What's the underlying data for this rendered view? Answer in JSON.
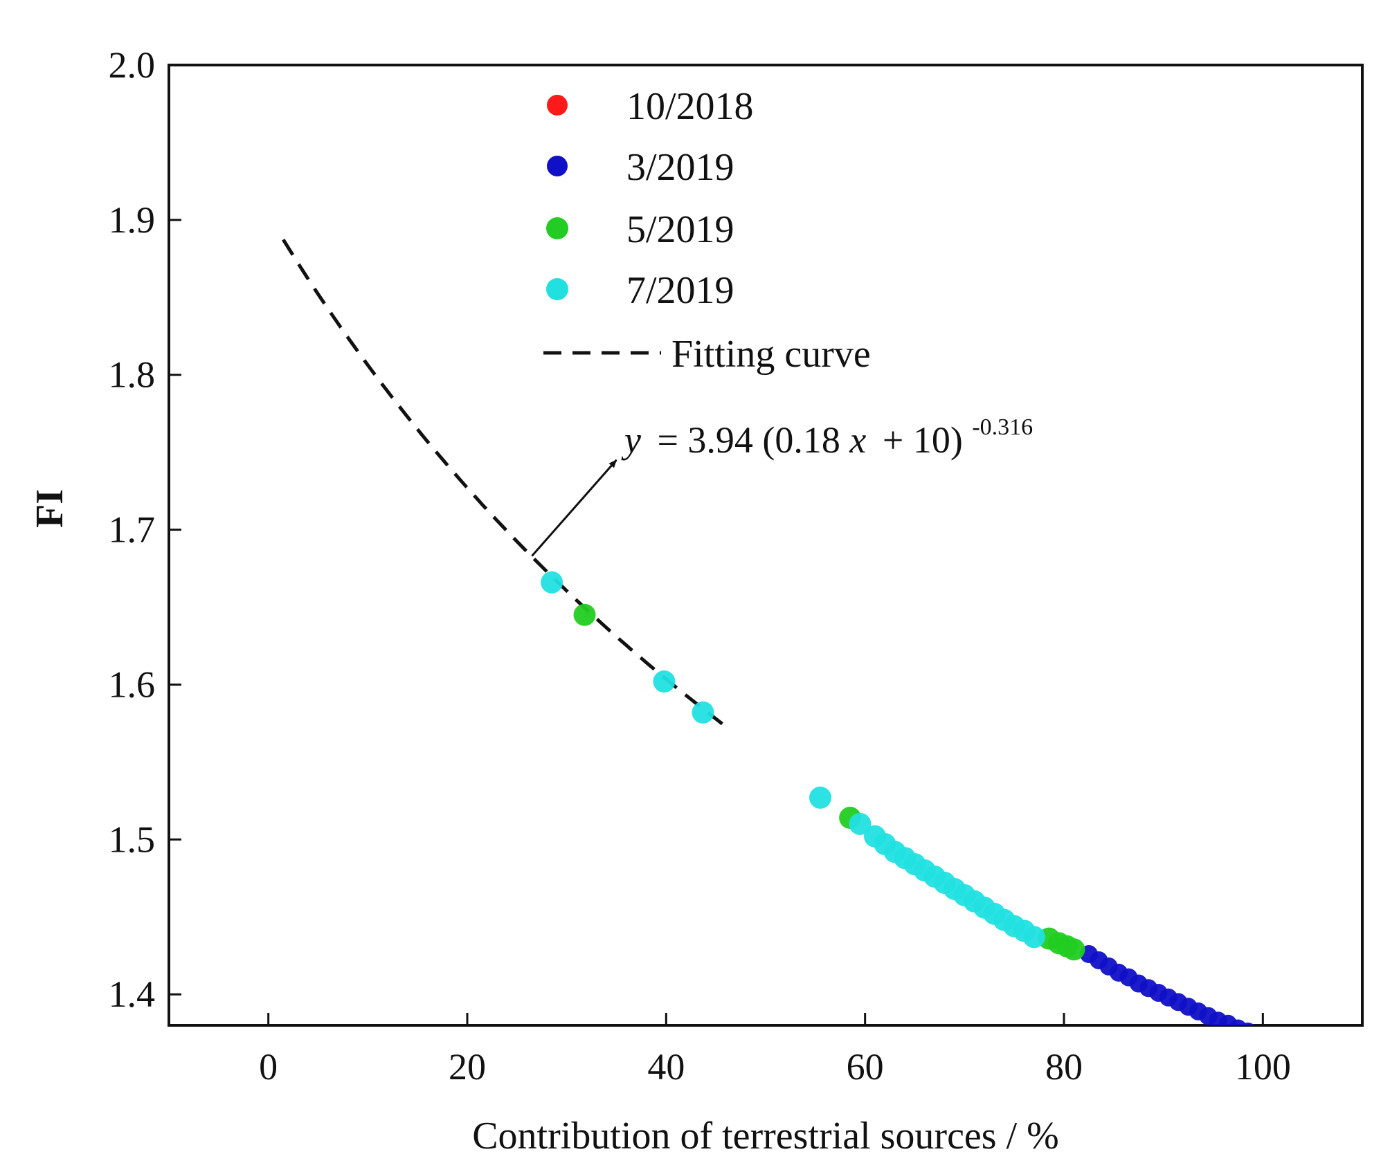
{
  "chart_data": {
    "type": "scatter",
    "title": "",
    "xlabel": "Contribution of terrestrial sources / %",
    "ylabel": "FI",
    "xlim": [
      -10,
      110
    ],
    "ylim": [
      1.38,
      2.0
    ],
    "xticks": [
      0,
      20,
      40,
      60,
      80,
      100
    ],
    "yticks": [
      1.4,
      1.5,
      1.6,
      1.7,
      1.8,
      1.9,
      2.0
    ],
    "xtick_labels": [
      "0",
      "20",
      "40",
      "60",
      "80",
      "100"
    ],
    "ytick_labels": [
      "1.4",
      "1.5",
      "1.6",
      "1.7",
      "1.8",
      "1.9",
      "2.0"
    ],
    "legend_position": "top-center",
    "series": [
      {
        "name": "10/2018",
        "color": "#ff1a1a",
        "x": [],
        "y": []
      },
      {
        "name": "3/2019",
        "color": "#1010c8",
        "x": [
          82.5,
          83.5,
          84.5,
          85.5,
          86.5,
          87.5,
          88.5,
          89.5,
          90.5,
          91.5,
          92.5,
          93.5,
          94.5,
          95.5,
          96.5,
          97.5,
          98.5
        ],
        "y": [
          1.426,
          1.422,
          1.418,
          1.414,
          1.411,
          1.407,
          1.404,
          1.401,
          1.398,
          1.395,
          1.392,
          1.389,
          1.386,
          1.383,
          1.381,
          1.378,
          1.376
        ]
      },
      {
        "name": "5/2019",
        "color": "#22cc22",
        "x": [
          31.8,
          58.5,
          78.5,
          79.5,
          80.3,
          81.0
        ],
        "y": [
          1.645,
          1.514,
          1.436,
          1.433,
          1.431,
          1.429
        ]
      },
      {
        "name": "7/2019",
        "color": "#22e0e0",
        "x": [
          28.5,
          39.8,
          43.7,
          55.5,
          59.5,
          61.0,
          62.0,
          63.0,
          64.0,
          65.0,
          66.0,
          67.0,
          68.0,
          69.0,
          70.0,
          71.0,
          72.0,
          73.0,
          74.0,
          75.0,
          76.0,
          77.0
        ],
        "y": [
          1.666,
          1.602,
          1.582,
          1.527,
          1.51,
          1.502,
          1.497,
          1.492,
          1.488,
          1.484,
          1.48,
          1.476,
          1.472,
          1.468,
          1.464,
          1.46,
          1.456,
          1.452,
          1.448,
          1.444,
          1.441,
          1.437
        ]
      }
    ],
    "fit": {
      "name": "Fitting curve",
      "equation": "y = 3.94 (0.18x + 10)^-0.316",
      "eq_y": "y",
      "eq_mid": "= 3.94 (0.18",
      "eq_x": "x",
      "eq_tail": "+ 10)",
      "eq_exp": "-0.316",
      "a": 3.94,
      "b": 0.18,
      "c": 10,
      "p": -0.316,
      "x_start": 1.5,
      "x_end": 46,
      "annotation_from": [
        26.5,
        1.683
      ],
      "annotation_to": [
        35,
        1.745
      ]
    }
  }
}
